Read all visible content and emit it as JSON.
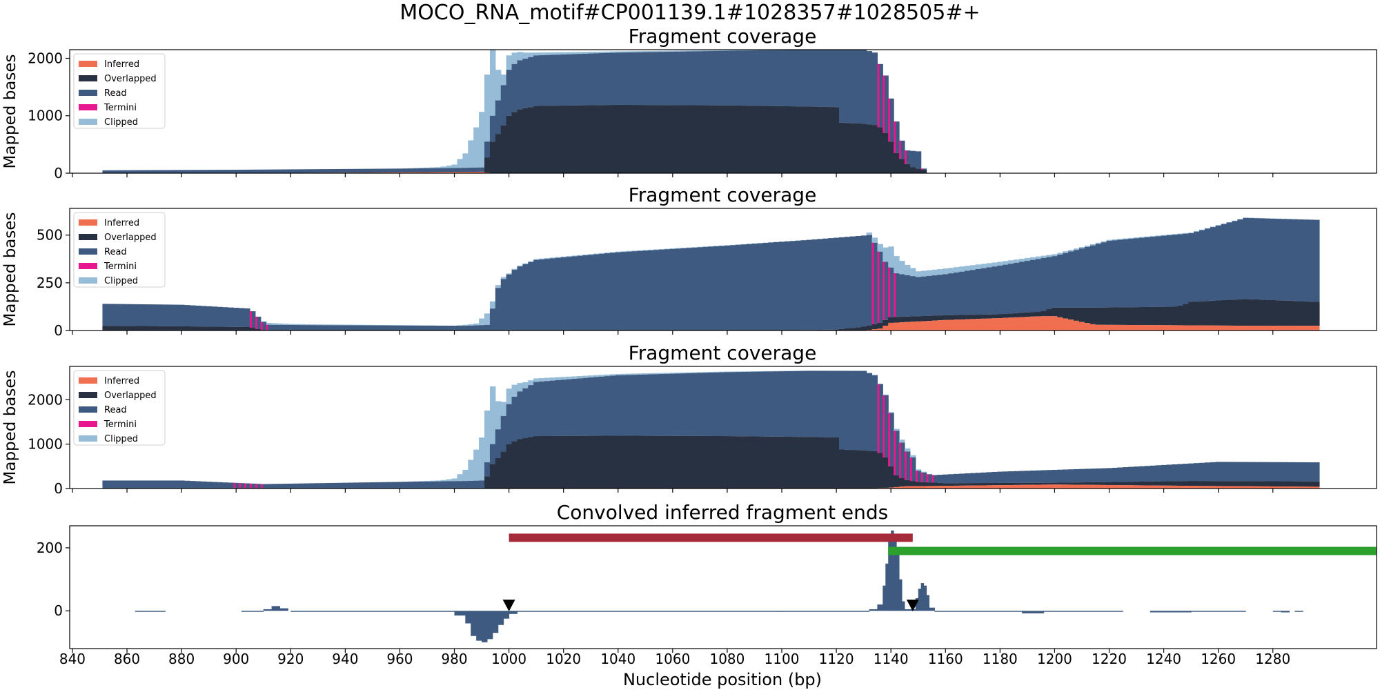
{
  "figure": {
    "suptitle": "MOCO_RNA_motif#CP001139.1#1028357#1028505#+",
    "xlabel": "Nucleotide position (bp)",
    "x_ticks": [
      840,
      860,
      880,
      900,
      920,
      940,
      960,
      980,
      1000,
      1020,
      1040,
      1060,
      1080,
      1100,
      1120,
      1140,
      1160,
      1180,
      1200,
      1220,
      1240,
      1260,
      1280
    ],
    "x_range": [
      839,
      1318
    ]
  },
  "colors": {
    "Inferred": "#ef6f50",
    "Overlapped": "#283142",
    "Read": "#3e5a80",
    "Termini": "#e8168f",
    "Clipped": "#96bcd8",
    "bar_red": "#a52a3a",
    "bar_green": "#2ca02c",
    "marker": "#000000"
  },
  "legend_entries": [
    "Inferred",
    "Overlapped",
    "Read",
    "Termini",
    "Clipped"
  ],
  "chart_data": [
    {
      "type": "area",
      "title": "Fragment coverage",
      "ylabel": "Mapped bases",
      "ylim": [
        0,
        2150
      ],
      "yticks": [
        0,
        1000,
        2000
      ],
      "legend": "top-left",
      "x_start": 851,
      "x_end": 1154,
      "series": [
        {
          "name": "Inferred",
          "x": [
            851,
            900,
            960,
            990,
            994,
            1154
          ],
          "values": [
            0,
            0,
            15,
            25,
            0,
            0
          ]
        },
        {
          "name": "Overlapped",
          "x": [
            851,
            990,
            994,
            997,
            1000,
            1003,
            1010,
            1040,
            1080,
            1110,
            1120,
            1121,
            1130,
            1134,
            1136,
            1138,
            1140,
            1142,
            1145,
            1147,
            1150,
            1152,
            1154
          ],
          "values": [
            0,
            0,
            550,
            750,
            1000,
            1100,
            1170,
            1190,
            1180,
            1160,
            1150,
            880,
            860,
            840,
            800,
            700,
            550,
            350,
            200,
            120,
            80,
            60,
            0
          ]
        },
        {
          "name": "Read",
          "x": [
            851,
            900,
            960,
            980,
            985,
            990,
            994,
            997,
            1000,
            1003,
            1010,
            1040,
            1080,
            1110,
            1130,
            1134,
            1136,
            1138,
            1140,
            1142,
            1145,
            1150,
            1152,
            1154
          ],
          "values": [
            50,
            60,
            80,
            90,
            95,
            100,
            1000,
            1400,
            1800,
            1950,
            2050,
            2100,
            2130,
            2150,
            2150,
            2100,
            1900,
            1700,
            1300,
            900,
            400,
            380,
            80,
            0
          ]
        },
        {
          "name": "Clipped",
          "x": [
            851,
            960,
            975,
            980,
            984,
            988,
            991,
            994,
            997,
            1000,
            1005,
            1010,
            1040,
            1090,
            1130,
            1150,
            1154
          ],
          "values": [
            0,
            0,
            20,
            60,
            250,
            700,
            1100,
            1300,
            150,
            250,
            120,
            50,
            20,
            10,
            0,
            0,
            0
          ]
        }
      ]
    },
    {
      "type": "area",
      "title": "Fragment coverage",
      "ylabel": "Mapped bases",
      "ylim": [
        0,
        640
      ],
      "yticks": [
        0,
        250,
        500
      ],
      "legend": "top-left",
      "x_start": 851,
      "x_end": 1296,
      "series": [
        {
          "name": "Inferred",
          "x": [
            851,
            1120,
            1130,
            1136,
            1140,
            1160,
            1180,
            1195,
            1200,
            1215,
            1240,
            1270,
            1296
          ],
          "values": [
            0,
            0,
            0,
            10,
            40,
            55,
            65,
            75,
            75,
            30,
            28,
            25,
            25
          ]
        },
        {
          "name": "Overlapped",
          "x": [
            851,
            880,
            905,
            910,
            980,
            1100,
            1120,
            1130,
            1136,
            1140,
            1160,
            1180,
            1195,
            1200,
            1215,
            1245,
            1250,
            1270,
            1296
          ],
          "values": [
            25,
            22,
            18,
            0,
            0,
            0,
            5,
            20,
            40,
            70,
            80,
            85,
            100,
            120,
            120,
            125,
            150,
            165,
            150
          ]
        },
        {
          "name": "Read",
          "x": [
            851,
            880,
            905,
            911,
            930,
            985,
            993,
            995,
            998,
            1003,
            1010,
            1040,
            1080,
            1110,
            1132,
            1135,
            1138,
            1142,
            1150,
            1160,
            1180,
            1200,
            1220,
            1250,
            1270,
            1296
          ],
          "values": [
            140,
            135,
            115,
            30,
            28,
            25,
            30,
            200,
            270,
            330,
            370,
            410,
            445,
            475,
            500,
            440,
            360,
            300,
            280,
            295,
            340,
            390,
            470,
            510,
            590,
            580
          ]
        },
        {
          "name": "Clipped",
          "x": [
            851,
            908,
            912,
            920,
            980,
            988,
            992,
            996,
            1000,
            1130,
            1136,
            1140,
            1145,
            1150,
            1160,
            1170,
            1180,
            1190,
            1200,
            1220,
            1296
          ],
          "values": [
            0,
            0,
            10,
            5,
            0,
            10,
            60,
            15,
            5,
            0,
            40,
            110,
            60,
            30,
            30,
            25,
            20,
            15,
            10,
            5,
            0
          ]
        }
      ]
    },
    {
      "type": "area",
      "title": "Fragment coverage",
      "ylabel": "Mapped bases",
      "ylim": [
        0,
        2750
      ],
      "yticks": [
        0,
        1000,
        2000
      ],
      "legend": "top-left",
      "x_start": 851,
      "x_end": 1296,
      "series": [
        {
          "name": "Inferred",
          "x": [
            851,
            1130,
            1140,
            1145,
            1160,
            1200,
            1250,
            1296
          ],
          "values": [
            0,
            0,
            20,
            50,
            60,
            90,
            60,
            40
          ]
        },
        {
          "name": "Overlapped",
          "x": [
            851,
            990,
            994,
            997,
            1000,
            1003,
            1010,
            1040,
            1080,
            1110,
            1120,
            1121,
            1130,
            1134,
            1136,
            1138,
            1140,
            1142,
            1145,
            1150,
            1160,
            1200,
            1250,
            1296
          ],
          "values": [
            0,
            0,
            550,
            750,
            1000,
            1100,
            1180,
            1190,
            1180,
            1160,
            1150,
            880,
            860,
            840,
            800,
            700,
            500,
            300,
            200,
            150,
            120,
            130,
            170,
            160
          ]
        },
        {
          "name": "Read",
          "x": [
            851,
            880,
            910,
            960,
            985,
            990,
            994,
            997,
            1000,
            1003,
            1010,
            1040,
            1080,
            1110,
            1130,
            1134,
            1136,
            1138,
            1140,
            1142,
            1145,
            1148,
            1150,
            1155,
            1180,
            1220,
            1260,
            1296
          ],
          "values": [
            180,
            180,
            100,
            150,
            170,
            180,
            1000,
            1500,
            1900,
            2150,
            2400,
            2550,
            2620,
            2650,
            2650,
            2550,
            2350,
            2100,
            1700,
            1300,
            900,
            700,
            400,
            300,
            380,
            460,
            600,
            590
          ]
        },
        {
          "name": "Clipped",
          "x": [
            851,
            960,
            975,
            980,
            984,
            988,
            991,
            994,
            997,
            1000,
            1005,
            1010,
            1040,
            1090,
            1130,
            1140,
            1145,
            1150,
            1155,
            1296
          ],
          "values": [
            0,
            0,
            20,
            60,
            250,
            700,
            1100,
            1300,
            300,
            350,
            150,
            80,
            30,
            10,
            0,
            20,
            80,
            30,
            0,
            0
          ]
        }
      ]
    },
    {
      "type": "bar",
      "title": "Convolved inferred fragment ends",
      "ylabel": "",
      "ylim": [
        -120,
        270
      ],
      "yticks": [
        0,
        200
      ],
      "bins": [
        [
          863,
          874,
          -2
        ],
        [
          902,
          910,
          -2
        ],
        [
          910,
          913,
          5
        ],
        [
          913,
          916,
          15
        ],
        [
          916,
          919,
          8
        ],
        [
          920,
          980,
          -3
        ],
        [
          980,
          984,
          -15
        ],
        [
          984,
          986,
          -40
        ],
        [
          986,
          988,
          -80
        ],
        [
          988,
          990,
          -95
        ],
        [
          990,
          992,
          -100
        ],
        [
          992,
          994,
          -90
        ],
        [
          994,
          996,
          -70
        ],
        [
          996,
          998,
          -45
        ],
        [
          998,
          1000,
          -25
        ],
        [
          1000,
          1003,
          -10
        ],
        [
          1003,
          1100,
          -3
        ],
        [
          1100,
          1132,
          -3
        ],
        [
          1132,
          1135,
          5
        ],
        [
          1135,
          1137,
          20
        ],
        [
          1137,
          1138,
          80
        ],
        [
          1138,
          1139,
          150
        ],
        [
          1139,
          1140,
          220
        ],
        [
          1140,
          1141,
          255
        ],
        [
          1141,
          1142,
          240
        ],
        [
          1142,
          1143,
          180
        ],
        [
          1143,
          1144,
          100
        ],
        [
          1144,
          1145,
          30
        ],
        [
          1145,
          1149,
          5
        ],
        [
          1149,
          1150,
          40
        ],
        [
          1150,
          1151,
          70
        ],
        [
          1151,
          1152,
          88
        ],
        [
          1152,
          1153,
          80
        ],
        [
          1153,
          1154,
          50
        ],
        [
          1154,
          1156,
          10
        ],
        [
          1156,
          1188,
          -3
        ],
        [
          1188,
          1196,
          -8
        ],
        [
          1196,
          1225,
          -3
        ],
        [
          1235,
          1250,
          -5
        ],
        [
          1250,
          1270,
          -2
        ],
        [
          1280,
          1283,
          -3
        ],
        [
          1283,
          1286,
          -5
        ],
        [
          1288,
          1291,
          -2
        ]
      ],
      "red_bar": {
        "x": [
          1000,
          1148
        ],
        "y": 232
      },
      "green_bar": {
        "x": [
          1139,
          1318
        ],
        "y": 190
      },
      "markers": [
        {
          "x": 1000,
          "y": 18
        },
        {
          "x": 1148,
          "y": 18
        }
      ]
    }
  ]
}
